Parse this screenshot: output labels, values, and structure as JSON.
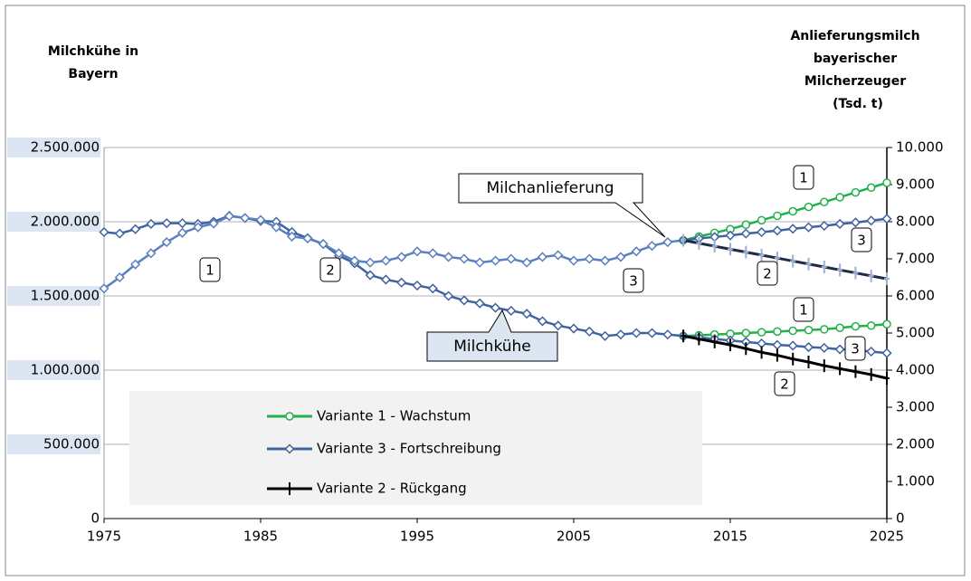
{
  "chart_data": {
    "type": "line",
    "y_title": [
      "Milchkühe in",
      "Bayern"
    ],
    "y2_title": [
      "Anlieferungsmilch",
      "bayerischer",
      "Milcherzeuger",
      "(Tsd. t)"
    ],
    "xlim": [
      1975,
      2025
    ],
    "xticks": [
      1975,
      1985,
      1995,
      2005,
      2015,
      2025
    ],
    "ylim": [
      0,
      2500000
    ],
    "yticks": [
      0,
      {
        "value": 500000,
        "label": "500.000"
      },
      {
        "value": 1000000,
        "label": "1.000.000"
      },
      {
        "value": 1500000,
        "label": "1.500.000"
      },
      {
        "value": 2000000,
        "label": "2.000.000"
      },
      {
        "value": 2500000,
        "label": "2.500.000"
      }
    ],
    "y2lim": [
      0,
      10000
    ],
    "y2ticks": [
      0,
      {
        "value": 1000,
        "label": "1.000"
      },
      {
        "value": 2000,
        "label": "2.000"
      },
      {
        "value": 3000,
        "label": "3.000"
      },
      {
        "value": 4000,
        "label": "4.000"
      },
      {
        "value": 5000,
        "label": "5.000"
      },
      {
        "value": 6000,
        "label": "6.000"
      },
      {
        "value": 7000,
        "label": "7.000"
      },
      {
        "value": 8000,
        "label": "8.000"
      },
      {
        "value": 9000,
        "label": "9.000"
      },
      {
        "value": 10000,
        "label": "10.000"
      }
    ],
    "grid": true,
    "legend": [
      {
        "name": "Variante 1 - Wachstum",
        "color": "#22b04b",
        "marker": "circle"
      },
      {
        "name": "Variante 3 - Fortschreibung",
        "color": "#3f62a0",
        "marker": "diamond"
      },
      {
        "name": "Variante 2 - Rückgang",
        "color": "#000000",
        "marker": "plus"
      }
    ],
    "series": [
      {
        "axis": "y",
        "color": "#3f62a0",
        "marker": "diamond",
        "x": [
          1975,
          1976,
          1977,
          1978,
          1979,
          1980,
          1981,
          1982,
          1983,
          1984,
          1985,
          1986,
          1987,
          1988,
          1989,
          1990,
          1991,
          1992,
          1993,
          1994,
          1995,
          1996,
          1997,
          1998,
          1999,
          2000,
          2001,
          2002,
          2003,
          2004,
          2005,
          2006,
          2007,
          2008,
          2009,
          2010,
          2011,
          2012
        ],
        "values": [
          1930000,
          1920000,
          1950000,
          1985000,
          1990000,
          1990000,
          1985000,
          2000000,
          2040000,
          2025000,
          2005000,
          2000000,
          1930000,
          1890000,
          1850000,
          1770000,
          1720000,
          1640000,
          1610000,
          1590000,
          1570000,
          1550000,
          1500000,
          1470000,
          1450000,
          1420000,
          1400000,
          1380000,
          1330000,
          1300000,
          1280000,
          1260000,
          1230000,
          1240000,
          1250000,
          1250000,
          1240000,
          1230000
        ]
      },
      {
        "axis": "y2",
        "color": "#5b7fbf",
        "marker": "diamond",
        "x": [
          1975,
          1976,
          1977,
          1978,
          1979,
          1980,
          1981,
          1982,
          1983,
          1984,
          1985,
          1986,
          1987,
          1988,
          1989,
          1990,
          1991,
          1992,
          1993,
          1994,
          1995,
          1996,
          1997,
          1998,
          1999,
          2000,
          2001,
          2002,
          2003,
          2004,
          2005,
          2006,
          2007,
          2008,
          2009,
          2010,
          2011,
          2012
        ],
        "values": [
          6200,
          6500,
          6850,
          7150,
          7450,
          7700,
          7850,
          7950,
          8150,
          8100,
          8050,
          7850,
          7600,
          7550,
          7400,
          7150,
          6950,
          6900,
          6950,
          7050,
          7200,
          7150,
          7050,
          7000,
          6900,
          6950,
          7000,
          6900,
          7050,
          7100,
          6950,
          7000,
          6950,
          7050,
          7200,
          7350,
          7450,
          7500
        ]
      },
      {
        "axis": "y2",
        "color": "#22b04b",
        "marker": "circle",
        "x": [
          2012,
          2013,
          2014,
          2015,
          2016,
          2017,
          2018,
          2019,
          2020,
          2021,
          2022,
          2023,
          2024,
          2025
        ],
        "values": [
          7500,
          7600,
          7700,
          7800,
          7920,
          8040,
          8160,
          8280,
          8400,
          8530,
          8660,
          8790,
          8920,
          9050
        ]
      },
      {
        "axis": "y2",
        "color": "#3f62a0",
        "marker": "diamond",
        "x": [
          2012,
          2013,
          2014,
          2015,
          2016,
          2017,
          2018,
          2019,
          2020,
          2021,
          2022,
          2023,
          2024,
          2025
        ],
        "values": [
          7500,
          7550,
          7590,
          7630,
          7680,
          7720,
          7760,
          7810,
          7850,
          7890,
          7940,
          7980,
          8030,
          8080
        ]
      },
      {
        "axis": "y2",
        "color": "#1f2a44",
        "marker": "plus",
        "marker_color": "#9bb0d4",
        "x": [
          2012,
          2013,
          2014,
          2015,
          2016,
          2017,
          2018,
          2019,
          2020,
          2021,
          2022,
          2023,
          2024,
          2025
        ],
        "values": [
          7500,
          7420,
          7340,
          7260,
          7180,
          7100,
          7020,
          6940,
          6860,
          6780,
          6700,
          6620,
          6540,
          6460
        ]
      },
      {
        "axis": "y",
        "color": "#22b04b",
        "marker": "circle",
        "x": [
          2012,
          2013,
          2014,
          2015,
          2016,
          2017,
          2018,
          2019,
          2020,
          2021,
          2022,
          2023,
          2024,
          2025
        ],
        "values": [
          1230000,
          1235000,
          1240000,
          1245000,
          1250000,
          1255000,
          1260000,
          1265000,
          1270000,
          1275000,
          1285000,
          1295000,
          1300000,
          1310000
        ]
      },
      {
        "axis": "y",
        "color": "#3f62a0",
        "marker": "diamond",
        "x": [
          2012,
          2013,
          2014,
          2015,
          2016,
          2017,
          2018,
          2019,
          2020,
          2021,
          2022,
          2023,
          2024,
          2025
        ],
        "values": [
          1230000,
          1220000,
          1210000,
          1200000,
          1190000,
          1180000,
          1170000,
          1165000,
          1155000,
          1150000,
          1140000,
          1135000,
          1125000,
          1115000
        ]
      },
      {
        "axis": "y",
        "color": "#000000",
        "marker": "plus",
        "x": [
          2012,
          2013,
          2014,
          2015,
          2016,
          2017,
          2018,
          2019,
          2020,
          2021,
          2022,
          2023,
          2024,
          2025
        ],
        "values": [
          1230000,
          1210000,
          1190000,
          1170000,
          1145000,
          1120000,
          1100000,
          1075000,
          1055000,
          1030000,
          1010000,
          990000,
          970000,
          945000
        ]
      }
    ],
    "annotations": [
      "1",
      "2",
      "3",
      "1",
      "2",
      "3",
      "1",
      "2",
      "3"
    ],
    "callouts": [
      "Milchanlieferung",
      "Milchkühe"
    ]
  }
}
